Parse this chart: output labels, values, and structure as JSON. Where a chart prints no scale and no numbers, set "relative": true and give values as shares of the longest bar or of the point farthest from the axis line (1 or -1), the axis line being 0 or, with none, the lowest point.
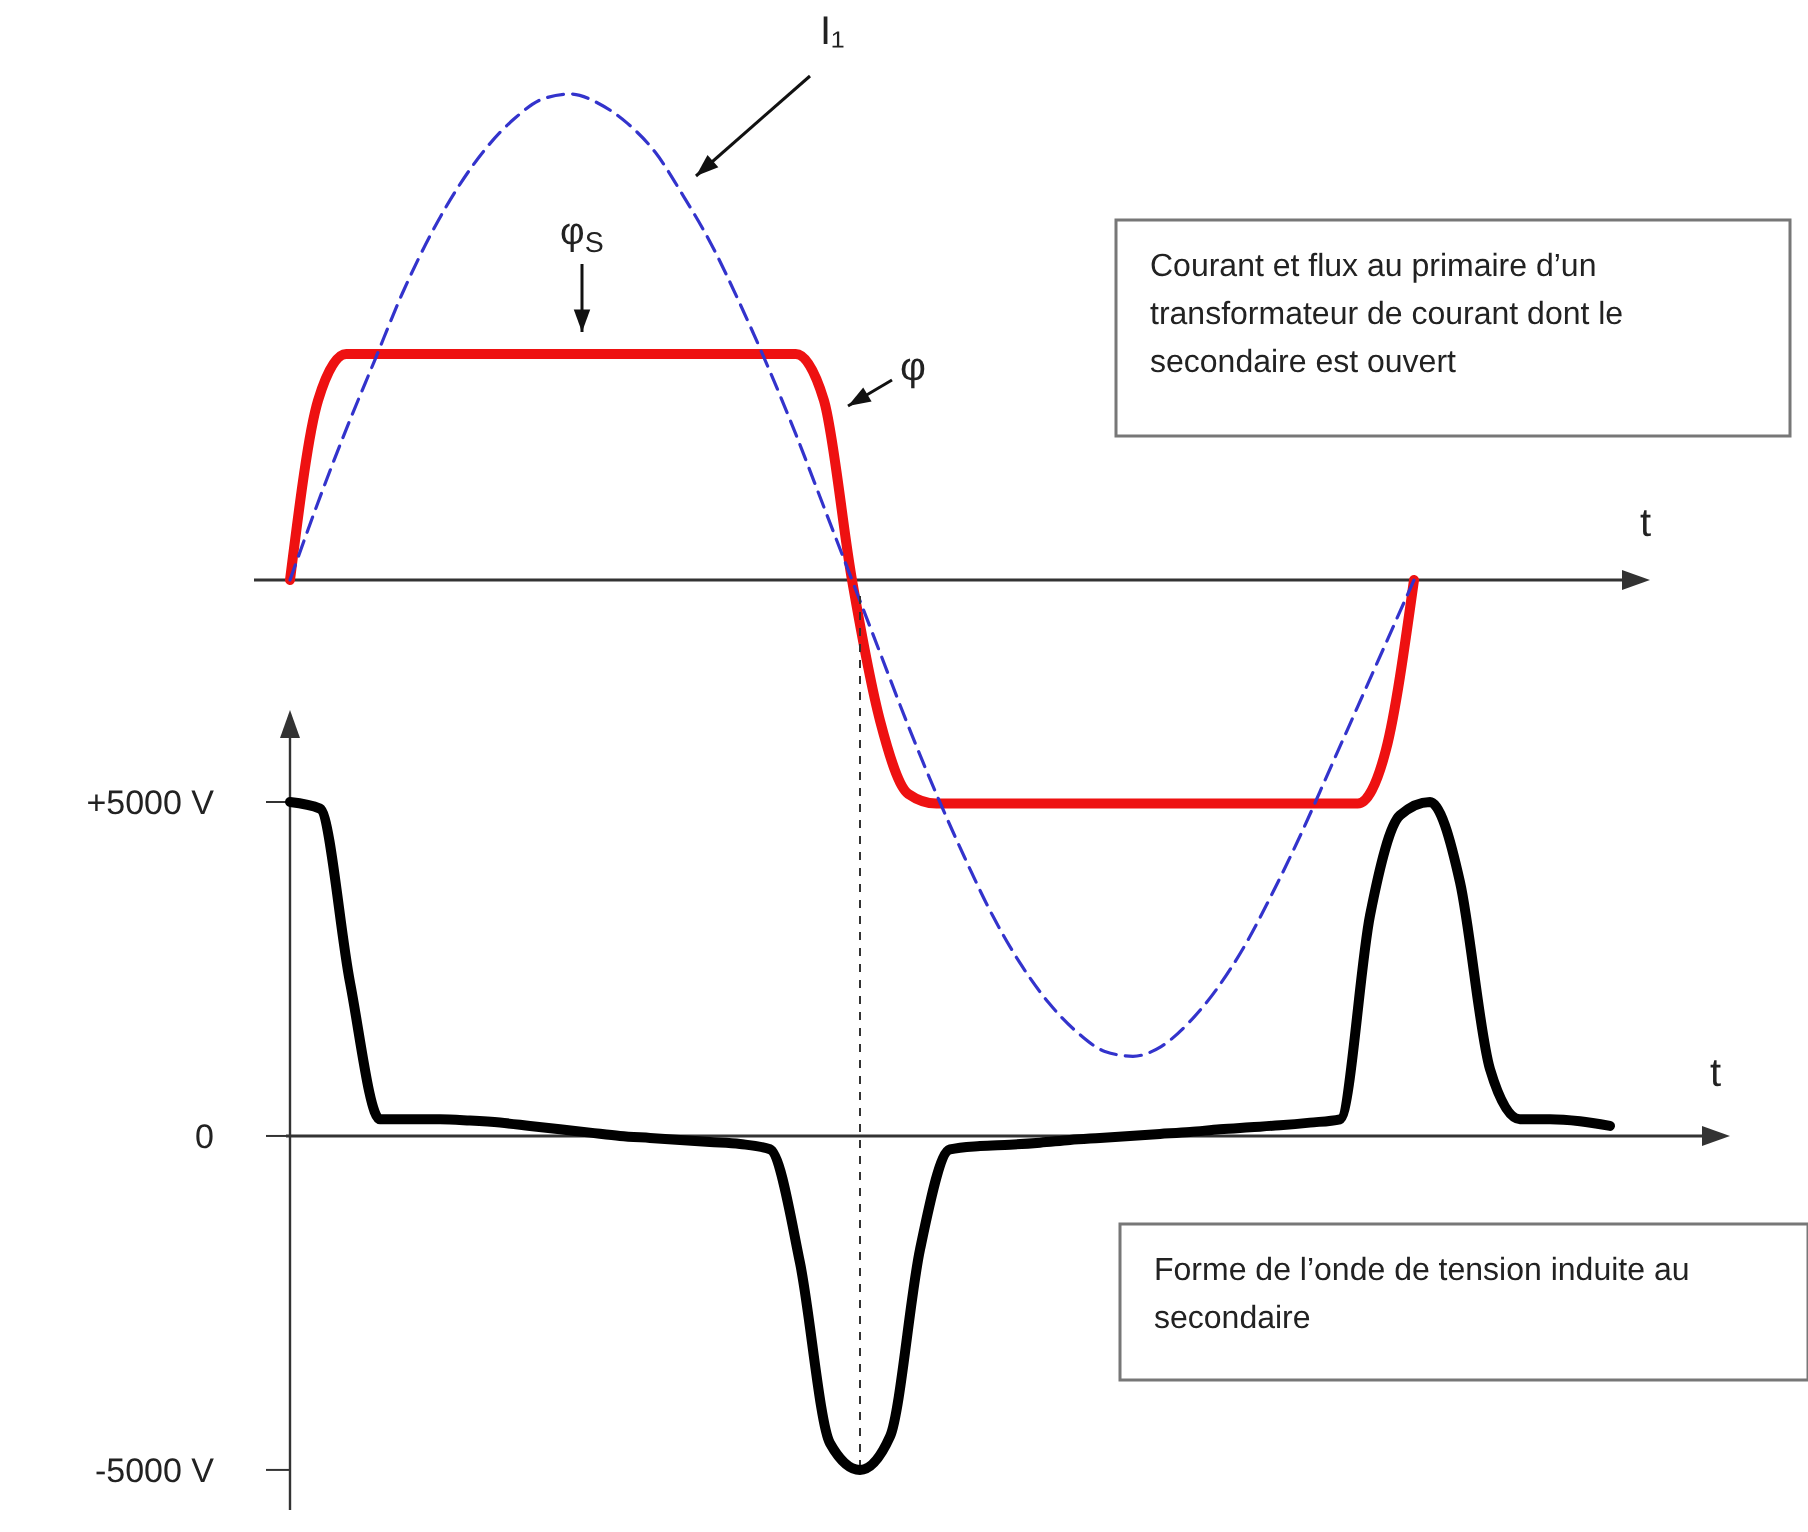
{
  "chart_data": [
    {
      "type": "line",
      "relative": true,
      "xlabel": "t",
      "legend": false,
      "grid": false,
      "categories": [
        null,
        null,
        null,
        null,
        null,
        null,
        null,
        null,
        null,
        null,
        null,
        null,
        null,
        null,
        null,
        null,
        null,
        null,
        null,
        null,
        null,
        null,
        null,
        null,
        null,
        null,
        null,
        null,
        null,
        null,
        null,
        null,
        null,
        null,
        null,
        null,
        null,
        null,
        null,
        null,
        null
      ],
      "series": [
        {
          "name": "I₁",
          "color": "#3333cc",
          "line_style": "dashed",
          "values": [
            0,
            0.16,
            0.31,
            0.45,
            0.59,
            0.71,
            0.81,
            0.89,
            0.95,
            0.99,
            1,
            0.98,
            0.94,
            0.88,
            0.79,
            0.69,
            0.57,
            0.44,
            0.3,
            0.15,
            0,
            -0.15,
            -0.3,
            -0.44,
            -0.57,
            -0.69,
            -0.79,
            -0.87,
            -0.93,
            -0.97,
            -0.98,
            -0.96,
            -0.91,
            -0.84,
            -0.75,
            -0.64,
            -0.52,
            -0.39,
            -0.26,
            -0.13,
            0
          ]
        },
        {
          "name": "φ",
          "color": "#ee1111",
          "line_style": "solid",
          "values": [
            0,
            0.37,
            0.465,
            0.465,
            0.465,
            0.465,
            0.465,
            0.465,
            0.465,
            0.465,
            0.465,
            0.465,
            0.465,
            0.465,
            0.465,
            0.465,
            0.465,
            0.465,
            0.465,
            0.37,
            0,
            -0.29,
            -0.44,
            -0.46,
            -0.46,
            -0.46,
            -0.46,
            -0.46,
            -0.46,
            -0.46,
            -0.46,
            -0.46,
            -0.46,
            -0.46,
            -0.46,
            -0.46,
            -0.46,
            -0.46,
            -0.46,
            -0.35,
            0
          ]
        }
      ],
      "annotations": [
        "φ$_{S}$",
        "Courant et flux au primaire d’un transformateur de courant dont le secondaire est ouvert"
      ]
    },
    {
      "type": "line",
      "xlabel": "t",
      "legend": false,
      "grid": false,
      "ylim": [
        -5600,
        5000
      ],
      "yticks": [
        {
          "value": 5000,
          "label": "+5000 V"
        },
        0,
        {
          "value": -5000,
          "label": "-5000 V"
        }
      ],
      "tick_labels": "y",
      "categories": [
        null,
        null,
        null,
        null,
        null,
        null,
        null,
        null,
        null,
        null,
        null,
        null,
        null,
        null,
        null,
        null,
        null,
        null,
        null,
        null,
        null,
        null,
        null,
        null,
        null,
        null,
        null,
        null,
        null,
        null,
        null,
        null,
        null,
        null,
        null,
        null,
        null,
        null,
        null,
        null,
        null,
        null,
        null,
        null,
        null
      ],
      "series": [
        {
          "color": "#000000",
          "values": [
            5000,
            4900,
            2300,
            250,
            250,
            250,
            230,
            200,
            150,
            100,
            50,
            0,
            -30,
            -60,
            -90,
            -120,
            -200,
            -1900,
            -4600,
            -5000,
            -4500,
            -1700,
            -200,
            -150,
            -130,
            -100,
            -60,
            -30,
            0,
            30,
            60,
            100,
            130,
            160,
            200,
            250,
            3300,
            4800,
            5000,
            3800,
            1000,
            250,
            250,
            220,
            150
          ]
        }
      ],
      "annotations": [
        "Forme de l’onde de tension induite au secondaire"
      ]
    }
  ]
}
